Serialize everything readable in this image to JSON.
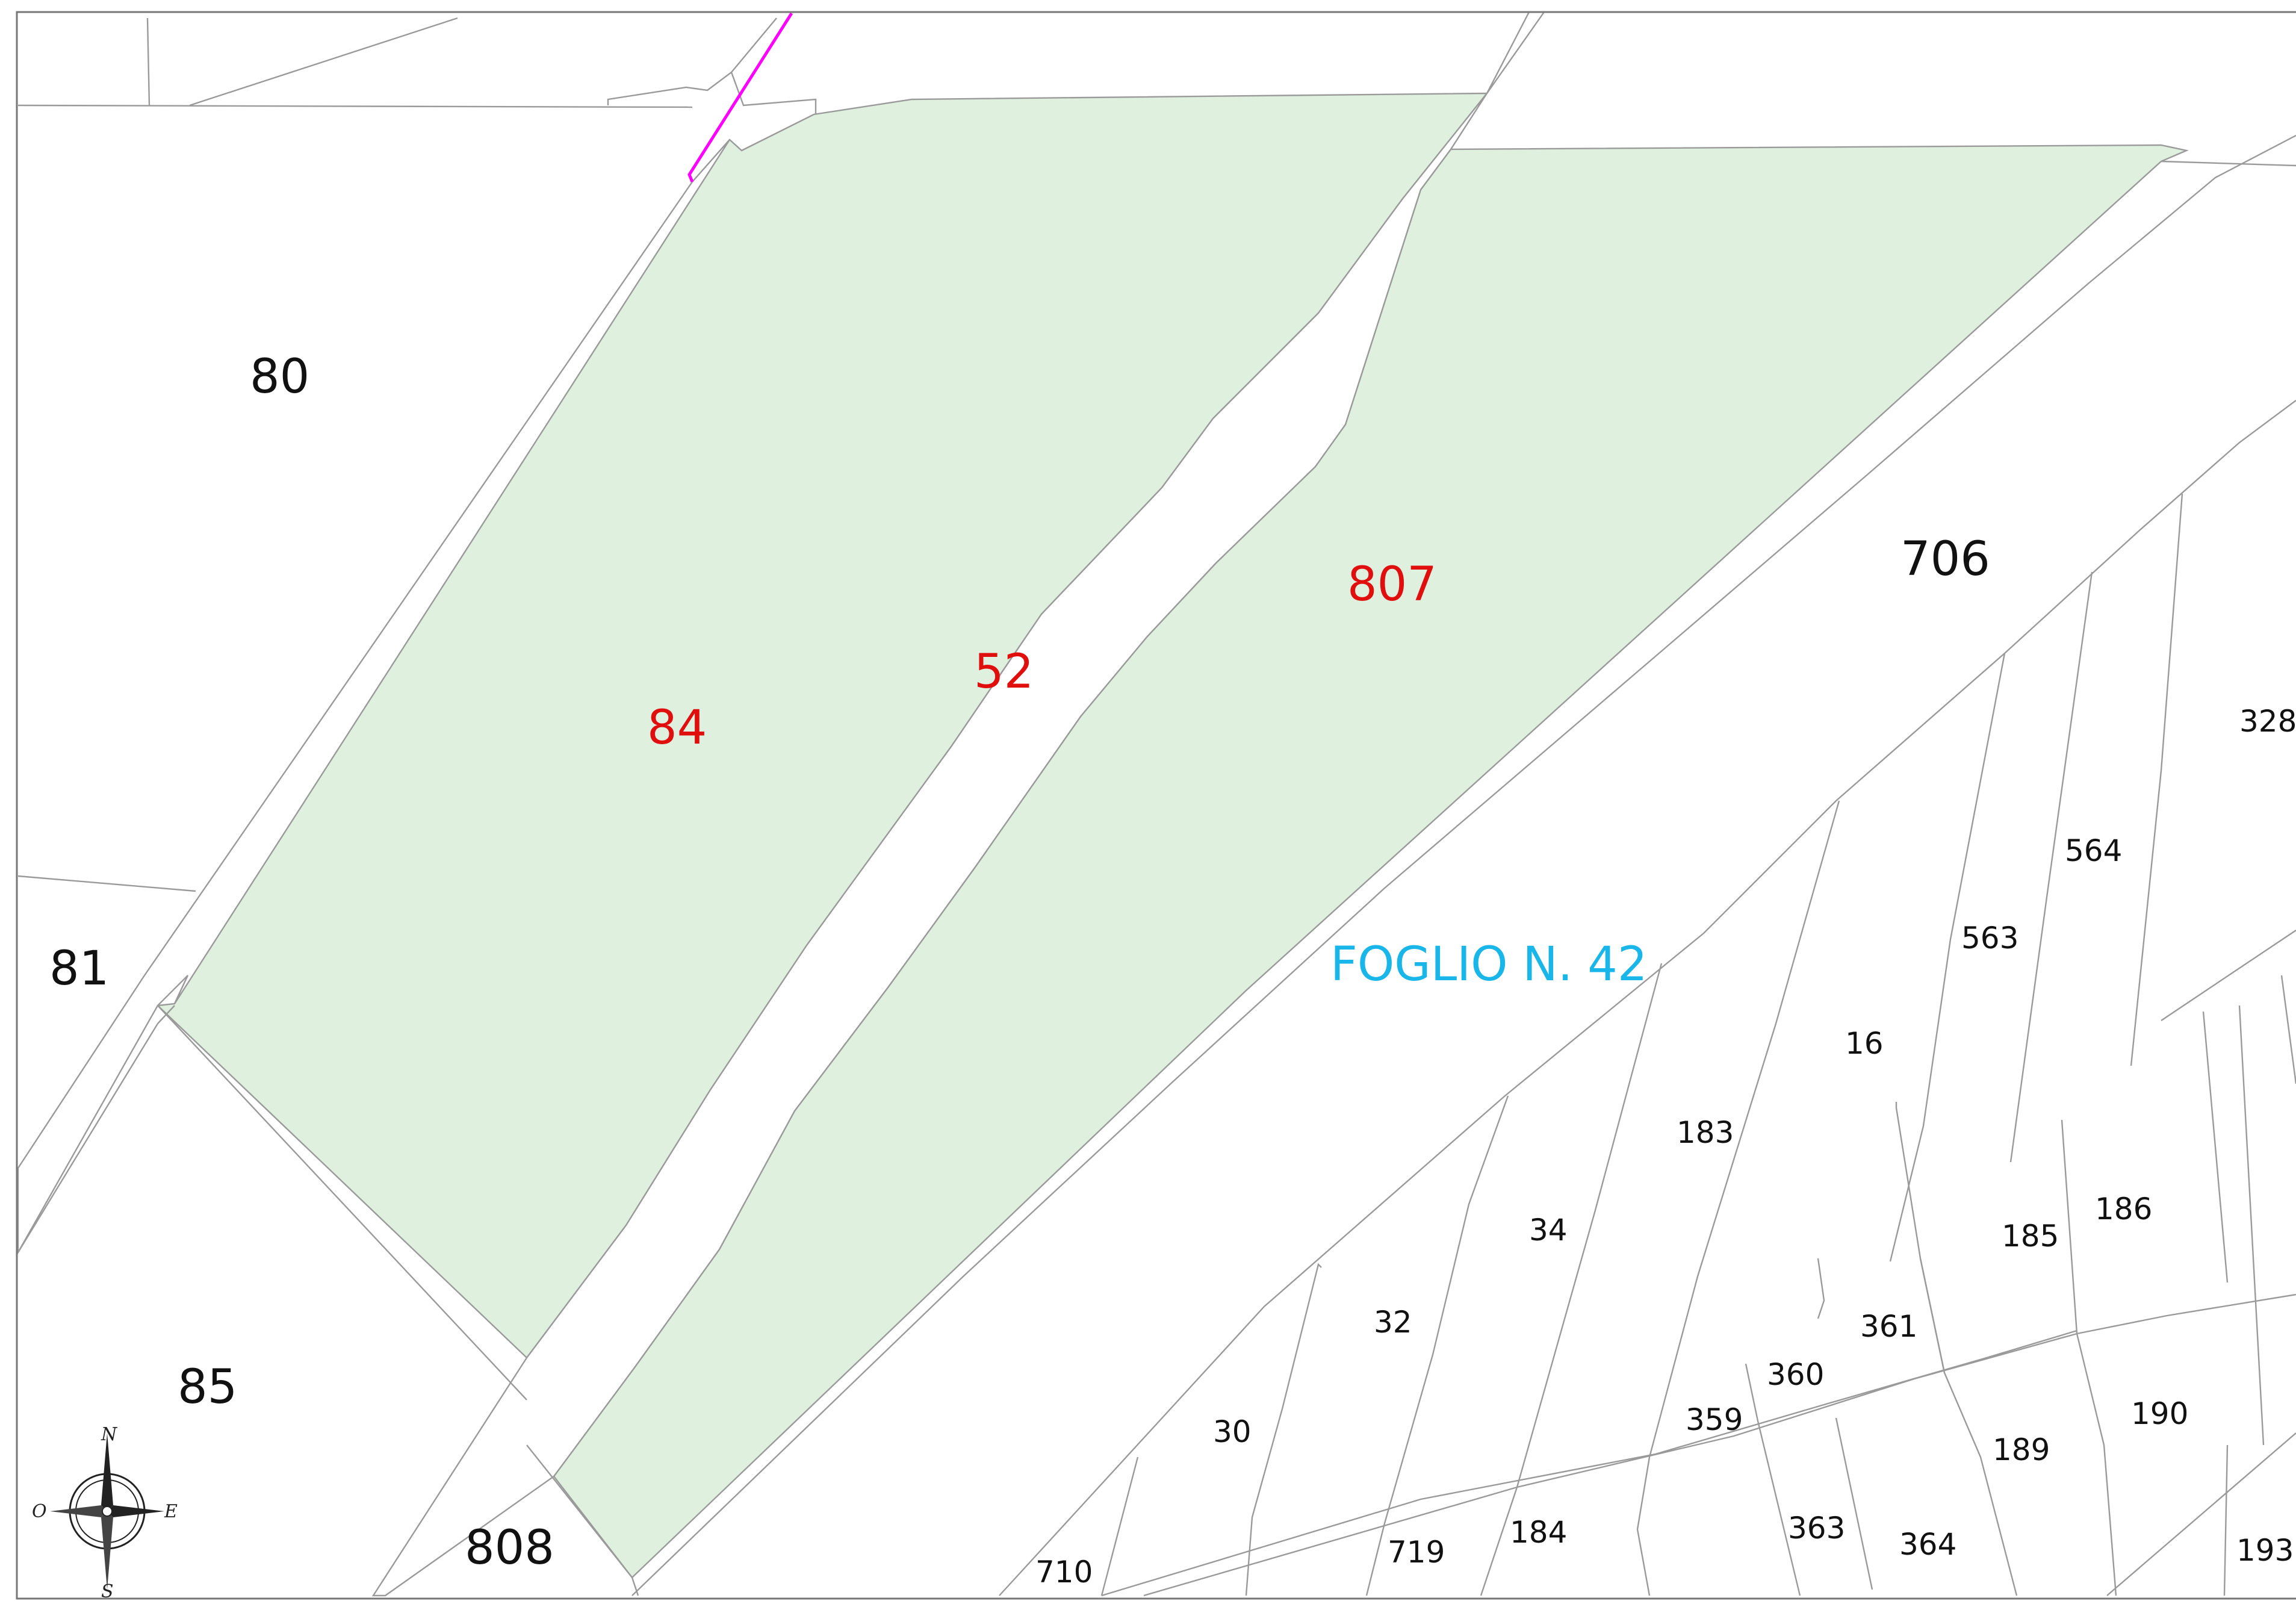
{
  "sheet_label": "FOGLIO N. 42",
  "colors": {
    "highlight_fill": "#dff0df",
    "highlight_text": "#e10e0e",
    "sheet_text": "#19b6ea",
    "boundary_line": "#9a9a9a",
    "magenta_line": "#ff00ff"
  },
  "highlighted_parcels": [
    "84",
    "52",
    "807"
  ],
  "parcels_large": [
    "80",
    "81",
    "85",
    "808",
    "706"
  ],
  "parcels_small": [
    "328",
    "564",
    "563",
    "16",
    "183",
    "34",
    "32",
    "30",
    "185",
    "186",
    "361",
    "360",
    "359",
    "189",
    "190",
    "363",
    "364",
    "184",
    "719",
    "710",
    "193"
  ],
  "compass": {
    "n": "N",
    "s": "S",
    "e": "E",
    "o": "O"
  }
}
